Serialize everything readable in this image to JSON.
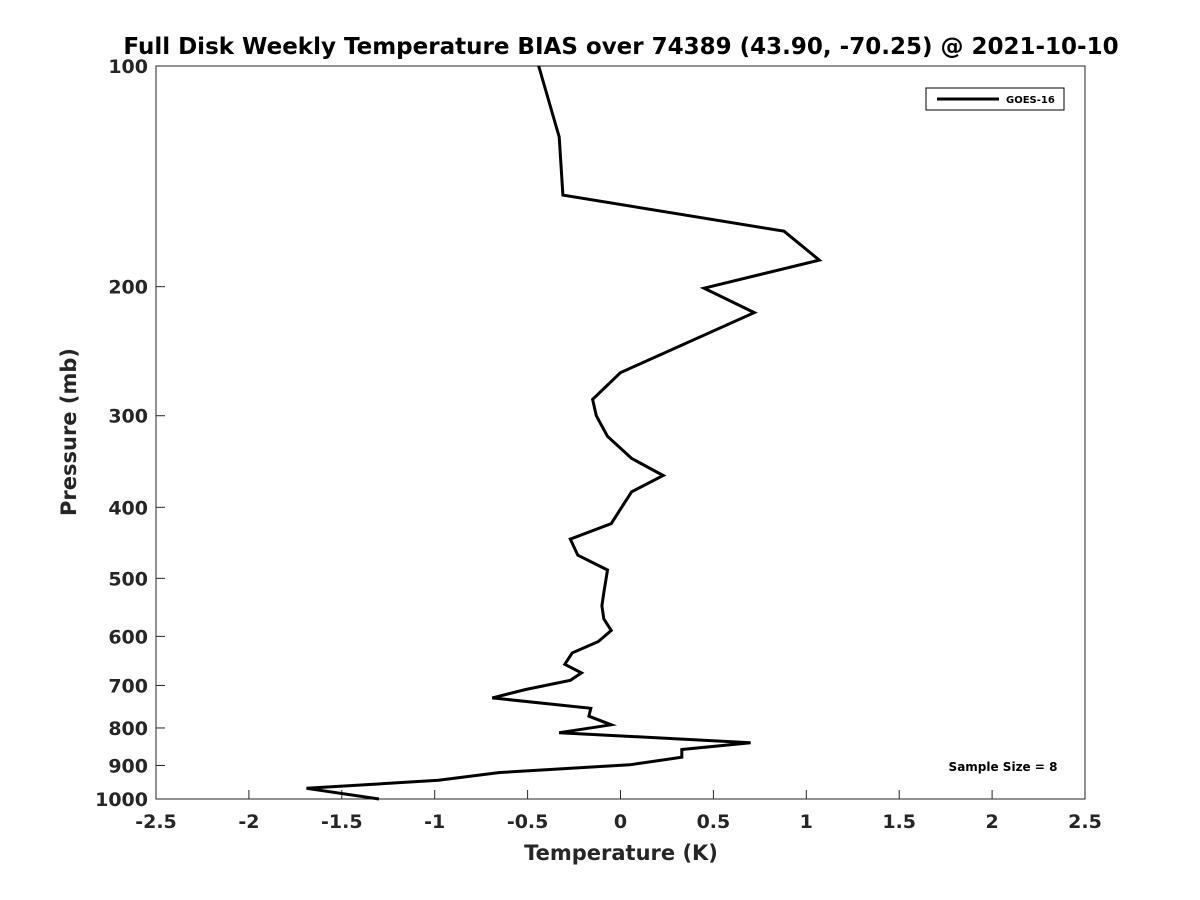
{
  "chart_data": {
    "type": "line",
    "title": "Full Disk Weekly Temperature BIAS over 74389 (43.90, -70.25) @ 2021-10-10",
    "xlabel": "Temperature (K)",
    "ylabel": "Pressure (mb)",
    "xlim": [
      -2.5,
      2.5
    ],
    "ylim": [
      1000,
      100
    ],
    "yscale": "log",
    "x_ticks": [
      "-2.5",
      "-2",
      "-1.5",
      "-1",
      "-0.5",
      "0",
      "0.5",
      "1",
      "1.5",
      "2",
      "2.5"
    ],
    "y_ticks": [
      "100",
      "200",
      "300",
      "400",
      "500",
      "600",
      "700",
      "800",
      "900",
      "1000"
    ],
    "grid": false,
    "legend_position": "top-right",
    "annotation": "Sample Size = 8",
    "series": [
      {
        "name": "GOES-16",
        "color": "#000000",
        "points": [
          [
            -0.44,
            100
          ],
          [
            -0.33,
            125
          ],
          [
            -0.31,
            150
          ],
          [
            0.88,
            168
          ],
          [
            1.07,
            184
          ],
          [
            0.45,
            201
          ],
          [
            0.72,
            217
          ],
          [
            0.0,
            262
          ],
          [
            -0.15,
            285
          ],
          [
            -0.13,
            300
          ],
          [
            -0.07,
            320
          ],
          [
            0.06,
            343
          ],
          [
            0.23,
            362
          ],
          [
            0.06,
            381
          ],
          [
            -0.05,
            421
          ],
          [
            -0.27,
            442
          ],
          [
            -0.23,
            465
          ],
          [
            -0.07,
            487
          ],
          [
            -0.09,
            523
          ],
          [
            -0.1,
            545
          ],
          [
            -0.09,
            568
          ],
          [
            -0.05,
            589
          ],
          [
            -0.12,
            610
          ],
          [
            -0.26,
            632
          ],
          [
            -0.3,
            655
          ],
          [
            -0.21,
            673
          ],
          [
            -0.27,
            689
          ],
          [
            -0.51,
            709
          ],
          [
            -0.69,
            728
          ],
          [
            -0.16,
            752
          ],
          [
            -0.17,
            771
          ],
          [
            -0.05,
            792
          ],
          [
            -0.33,
            812
          ],
          [
            0.7,
            838
          ],
          [
            0.33,
            856
          ],
          [
            0.33,
            877
          ],
          [
            0.05,
            898
          ],
          [
            -0.65,
            920
          ],
          [
            -0.98,
            943
          ],
          [
            -1.69,
            967
          ],
          [
            -1.3,
            1000
          ]
        ]
      }
    ]
  }
}
